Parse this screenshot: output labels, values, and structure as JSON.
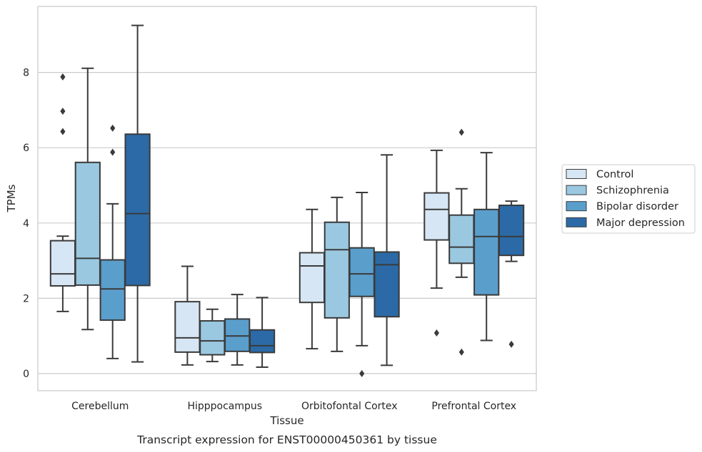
{
  "caption": "Transcript expression for ENST00000450361 by tissue",
  "chart_data": {
    "type": "box",
    "xlabel": "Tissue",
    "ylabel": "TPMs",
    "ylim": [
      -0.45,
      9.7
    ],
    "yticks": [
      0,
      2,
      4,
      6,
      8
    ],
    "grid": "horizontal",
    "legend_position": "right",
    "categories": [
      "Cerebellum",
      "Hipppocampus",
      "Orbitofontal Cortex",
      "Prefrontal Cortex"
    ],
    "series": [
      {
        "name": "Control",
        "color": "#d6e6f4",
        "boxes": [
          {
            "whislo": 1.65,
            "q1": 2.33,
            "med": 2.65,
            "q3": 3.53,
            "whishi": 3.65,
            "fliers": [
              6.43,
              6.97,
              7.88
            ]
          },
          {
            "whislo": 0.23,
            "q1": 0.57,
            "med": 0.95,
            "q3": 1.91,
            "whishi": 2.85,
            "fliers": []
          },
          {
            "whislo": 0.66,
            "q1": 1.89,
            "med": 2.86,
            "q3": 3.21,
            "whishi": 4.36,
            "fliers": []
          },
          {
            "whislo": 2.27,
            "q1": 3.55,
            "med": 4.36,
            "q3": 4.8,
            "whishi": 5.93,
            "fliers": [
              1.08
            ]
          }
        ]
      },
      {
        "name": "Schizophrenia",
        "color": "#9ac8e0",
        "boxes": [
          {
            "whislo": 1.17,
            "q1": 2.35,
            "med": 3.06,
            "q3": 5.61,
            "whishi": 8.11,
            "fliers": []
          },
          {
            "whislo": 0.32,
            "q1": 0.5,
            "med": 0.87,
            "q3": 1.4,
            "whishi": 1.71,
            "fliers": []
          },
          {
            "whislo": 0.59,
            "q1": 1.48,
            "med": 3.29,
            "q3": 4.02,
            "whishi": 4.68,
            "fliers": []
          },
          {
            "whislo": 2.56,
            "q1": 2.93,
            "med": 3.36,
            "q3": 4.21,
            "whishi": 4.91,
            "fliers": [
              0.57,
              6.41
            ]
          }
        ]
      },
      {
        "name": "Bipolar disorder",
        "color": "#5a9ecc",
        "boxes": [
          {
            "whislo": 0.4,
            "q1": 1.42,
            "med": 2.25,
            "q3": 3.02,
            "whishi": 4.51,
            "fliers": [
              5.88,
              6.52
            ]
          },
          {
            "whislo": 0.23,
            "q1": 0.59,
            "med": 1.0,
            "q3": 1.45,
            "whishi": 2.1,
            "fliers": []
          },
          {
            "whislo": 0.74,
            "q1": 2.05,
            "med": 2.65,
            "q3": 3.34,
            "whishi": 4.81,
            "fliers": [
              0.0
            ]
          },
          {
            "whislo": 0.88,
            "q1": 2.09,
            "med": 3.64,
            "q3": 4.36,
            "whishi": 5.87,
            "fliers": []
          }
        ]
      },
      {
        "name": "Major depression",
        "color": "#2b6aa6",
        "boxes": [
          {
            "whislo": 0.31,
            "q1": 2.34,
            "med": 4.25,
            "q3": 6.36,
            "whishi": 9.25,
            "fliers": []
          },
          {
            "whislo": 0.17,
            "q1": 0.56,
            "med": 0.74,
            "q3": 1.16,
            "whishi": 2.02,
            "fliers": []
          },
          {
            "whislo": 0.22,
            "q1": 1.51,
            "med": 2.89,
            "q3": 3.23,
            "whishi": 5.81,
            "fliers": []
          },
          {
            "whislo": 2.98,
            "q1": 3.14,
            "med": 3.64,
            "q3": 4.47,
            "whishi": 4.58,
            "fliers": [
              0.78
            ]
          }
        ]
      }
    ]
  }
}
